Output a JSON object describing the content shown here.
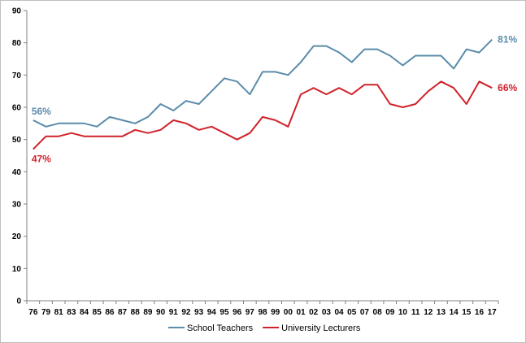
{
  "chart_data": {
    "type": "line",
    "title": "",
    "xlabel": "",
    "ylabel": "",
    "ylim": [
      0,
      90
    ],
    "ytick_step": 10,
    "grid": false,
    "legend_position": "bottom",
    "categories": [
      "76",
      "79",
      "81",
      "83",
      "84",
      "85",
      "86",
      "87",
      "88",
      "89",
      "90",
      "91",
      "92",
      "93",
      "94",
      "95",
      "96",
      "97",
      "98",
      "99",
      "00",
      "01",
      "02",
      "03",
      "04",
      "05",
      "07",
      "08",
      "09",
      "10",
      "11",
      "12",
      "13",
      "14",
      "15",
      "16",
      "17"
    ],
    "series": [
      {
        "name": "School Teachers",
        "color": "#5b8caa",
        "values": [
          56,
          54,
          55,
          55,
          55,
          54,
          57,
          56,
          55,
          57,
          61,
          59,
          62,
          61,
          65,
          69,
          68,
          64,
          71,
          71,
          70,
          74,
          79,
          79,
          77,
          74,
          78,
          78,
          76,
          73,
          76,
          76,
          76,
          72,
          78,
          77,
          81
        ],
        "start_label": "56%",
        "end_label": "81%"
      },
      {
        "name": "University Lecturers",
        "color": "#d0222a",
        "values": [
          47,
          51,
          51,
          52,
          51,
          51,
          51,
          51,
          53,
          52,
          53,
          56,
          55,
          53,
          54,
          52,
          50,
          52,
          57,
          56,
          54,
          64,
          66,
          64,
          66,
          64,
          67,
          67,
          61,
          60,
          61,
          65,
          68,
          66,
          61,
          68,
          66
        ],
        "start_label": "47%",
        "end_label": "66%"
      }
    ]
  }
}
